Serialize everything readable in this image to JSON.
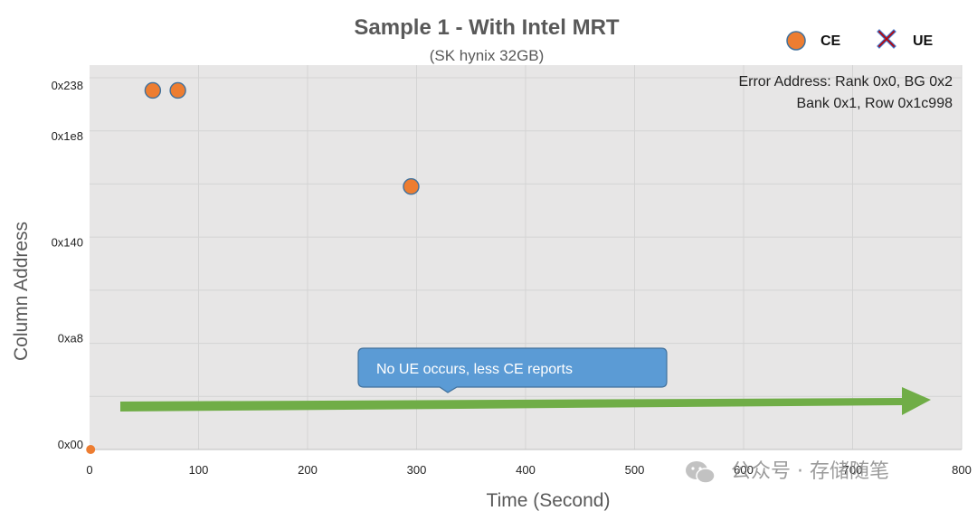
{
  "chart_data": {
    "type": "scatter",
    "title": "Sample 1 - With Intel MRT",
    "subtitle": "(SK hynix 32GB)",
    "xlabel": "Time (Second)",
    "ylabel": "Column Address",
    "xlim": [
      0,
      800
    ],
    "ylim": [
      0,
      608
    ],
    "x_ticks": [
      0,
      100,
      200,
      300,
      400,
      500,
      600,
      700,
      800
    ],
    "x_tick_labels": [
      "0",
      "100",
      "200",
      "300",
      "400",
      "500",
      "600",
      "700",
      "800"
    ],
    "y_ticks": [
      0,
      168,
      320,
      488,
      568
    ],
    "y_tick_labels": [
      "0x00",
      "0xa8",
      "0x140",
      "0x1e8",
      "0x238"
    ],
    "grid": true,
    "legend_position": "top-right",
    "series": [
      {
        "name": "CE",
        "marker": "circle",
        "color": "#ED7D31",
        "points": [
          {
            "x": 58,
            "y": 568
          },
          {
            "x": 81,
            "y": 568
          },
          {
            "x": 295,
            "y": 416
          },
          {
            "x": 1,
            "y": 0
          }
        ]
      },
      {
        "name": "UE",
        "marker": "x",
        "color": "#C00000",
        "points": []
      }
    ],
    "annotations": {
      "error_address_line1": "Error Address: Rank 0x0, BG 0x2",
      "error_address_line2": "Bank 0x1, Row 0x1c998",
      "callout": "No UE occurs, less CE reports"
    },
    "colors": {
      "plot_background": "#E7E6E6",
      "trend_arrow": "#70AD47",
      "callout_fill": "#5B9BD5",
      "callout_border": "#41719C"
    }
  },
  "watermark": {
    "text": "公众号 · 存储随笔",
    "icon": "wechat-icon"
  }
}
